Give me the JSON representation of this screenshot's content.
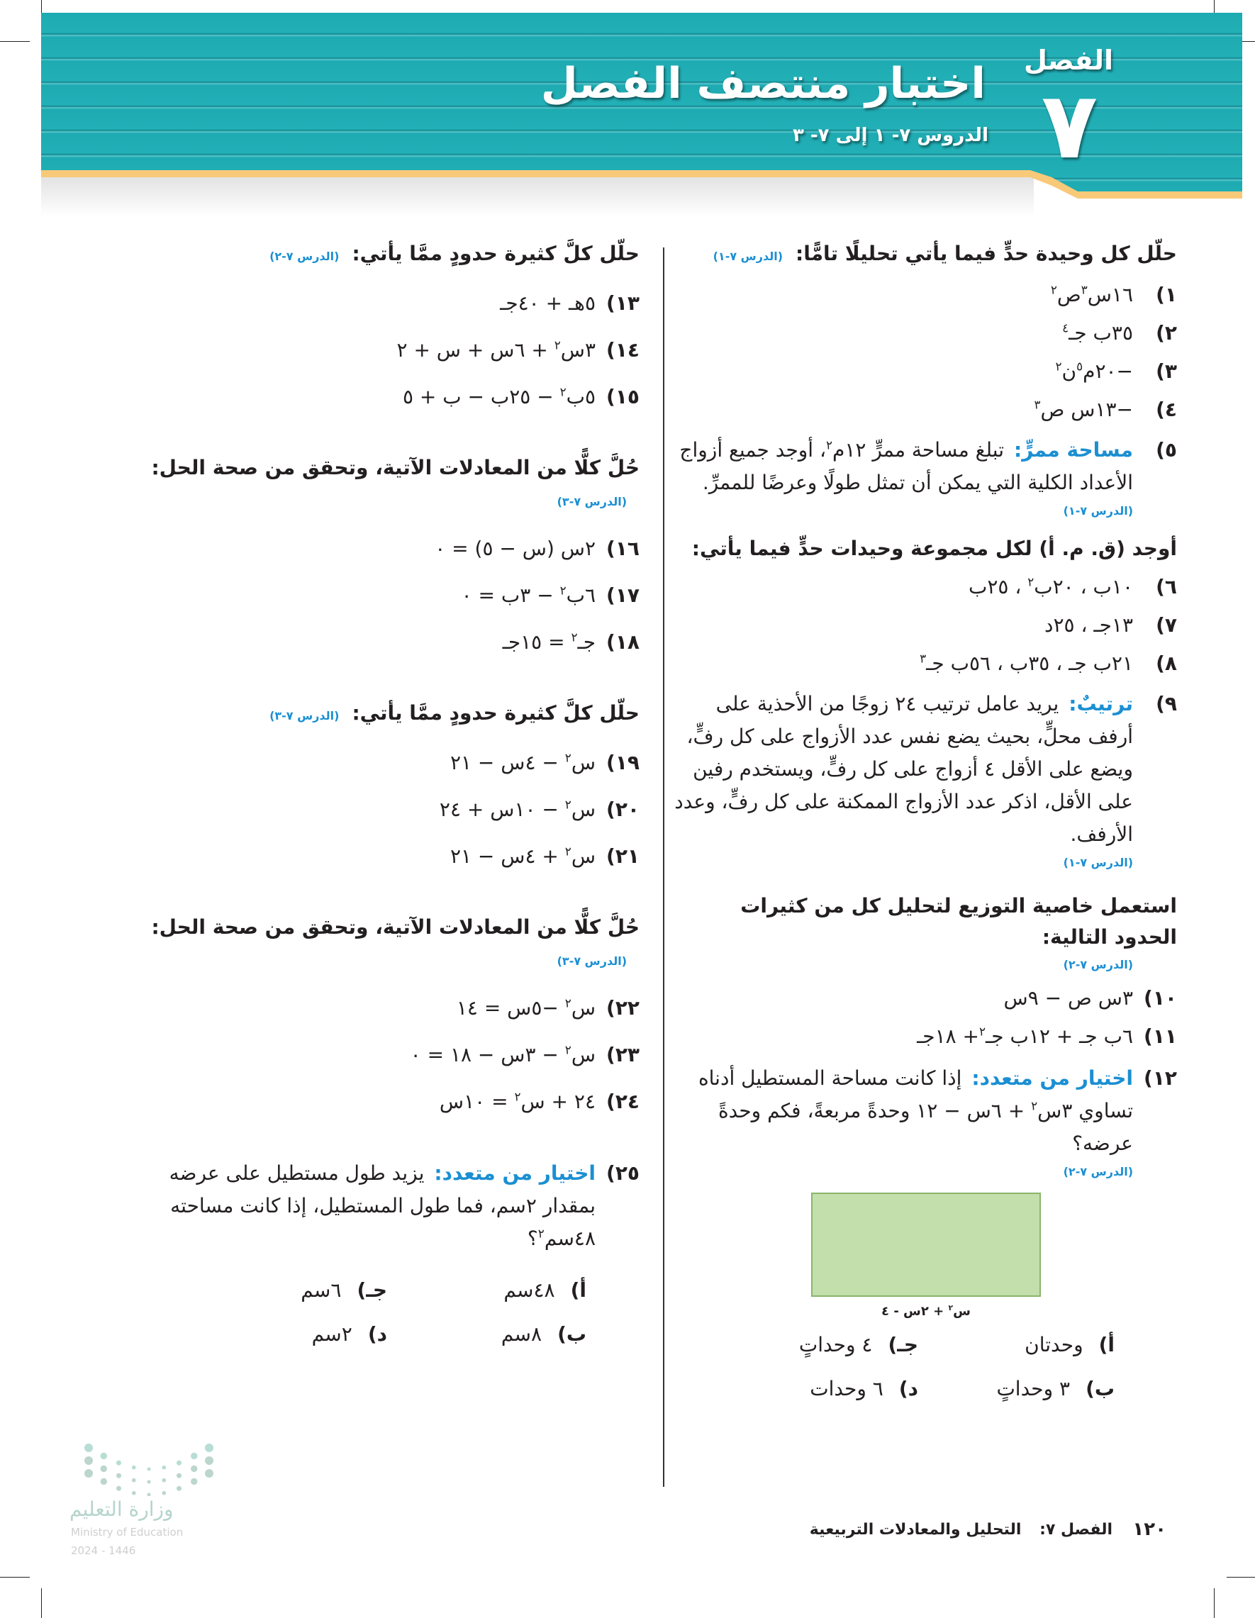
{
  "header": {
    "chapter_word": "الفصل",
    "chapter_number": "٧",
    "title": "اختبار منتصف الفصل",
    "subtitle": "الدروس ٧- ١ إلى ٧- ٣",
    "band_color": "#1eaab1",
    "accent_color": "#f8c979"
  },
  "lesson_ref_color": "#1b8fd2",
  "right": {
    "blocks": [
      {
        "type": "heading",
        "text": "حلّل كل وحيدة حدٍّ فيما يأتي تحليلًا تامًّا:",
        "ref": "(الدرس ٧-١)"
      },
      {
        "type": "item",
        "num": "١)",
        "expr": [
          "١٦س",
          {
            "sup": "٣"
          },
          "ص",
          {
            "sup": "٢"
          }
        ]
      },
      {
        "type": "item",
        "num": "٢)",
        "expr": [
          "٣٥ب جـ",
          {
            "sup": "٤"
          }
        ]
      },
      {
        "type": "item",
        "num": "٣)",
        "expr": [
          "−٢٠م",
          {
            "sup": "٥"
          },
          "ن",
          {
            "sup": "٢"
          }
        ]
      },
      {
        "type": "item",
        "num": "٤)",
        "expr": [
          "−١٣س ص",
          {
            "sup": "٣"
          }
        ]
      },
      {
        "type": "item",
        "num": "٥)",
        "label": "مساحة ممرٍّ:",
        "expr": [
          "تبلغ مساحة ممرٍّ ١٢م",
          {
            "sup": "٢"
          },
          "، أوجد جميع أزواج الأعداد الكلية التي يمكن أن تمثل طولًا وعرضًا للممرِّ."
        ]
      },
      {
        "type": "ref",
        "text": "(الدرس ٧-١)"
      },
      {
        "type": "heading",
        "text": "أوجد (ق. م. أ) لكل مجموعة وحيدات حدٍّ فيما يأتي:"
      },
      {
        "type": "item",
        "num": "٦)",
        "expr": [
          "١٠ب ، ٢٠ب",
          {
            "sup": "٢"
          },
          " ، ٢٥ب"
        ]
      },
      {
        "type": "item",
        "num": "٧)",
        "expr": [
          "١٣جـ ، ٢٥د"
        ]
      },
      {
        "type": "item",
        "num": "٨)",
        "expr": [
          "٢١ب جـ ، ٣٥ب ، ٥٦ب جـ",
          {
            "sup": "٣"
          }
        ]
      },
      {
        "type": "item",
        "num": "٩)",
        "label": "ترتيبٌ:",
        "expr": [
          "يريد عامل ترتيب ٢٤ زوجًا من الأحذية على أرفف محلٍّ، بحيث يضع نفس عدد الأزواج على كل رفٍّ، ويضع على الأقل ٤ أزواج على كل رفٍّ، ويستخدم رفين على الأقل، اذكر عدد الأزواج الممكنة على كل رفٍّ، وعدد الأرفف."
        ]
      },
      {
        "type": "ref",
        "text": "(الدرس ٧-١)"
      },
      {
        "type": "heading",
        "text": "استعمل خاصية التوزيع لتحليل كل من كثيرات الحدود التالية:"
      },
      {
        "type": "ref",
        "text": "(الدرس ٧-٢)"
      },
      {
        "type": "item",
        "num": "١٠)",
        "expr": [
          "٣س ص − ٩س"
        ]
      },
      {
        "type": "item",
        "num": "١١)",
        "expr": [
          "٦ب جـ + ١٢ب جـ",
          {
            "sup": "٢"
          },
          "+ ١٨جـ"
        ]
      },
      {
        "type": "item",
        "num": "١٢)",
        "label": "اختيار من متعدد:",
        "expr": [
          "إذا كانت مساحة المستطيل أدناه تساوي ٣س",
          {
            "sup": "٢"
          },
          " + ٦س − ١٢ وحدةً مربعةً، فكم وحدةً عرضه؟"
        ]
      },
      {
        "type": "ref",
        "text": "(الدرس ٧-٢)"
      }
    ],
    "figure": {
      "label": [
        "س",
        {
          "sup": "٢"
        },
        " + ٢س - ٤"
      ],
      "fill": "#c3dfac"
    },
    "options": [
      {
        "key": "أ)",
        "text": "وحدتان"
      },
      {
        "key": "ب)",
        "text": "٣ وحداتٍ"
      },
      {
        "key": "جـ)",
        "text": "٤ وحداتٍ"
      },
      {
        "key": "د)",
        "text": "٦ وحدات"
      }
    ]
  },
  "left": {
    "blocks": [
      {
        "type": "heading",
        "text": "حلّل كلَّ كثيرة حدودٍ ممَّا يأتي:",
        "ref": "(الدرس ٧-٢)"
      },
      {
        "type": "item",
        "num": "١٣)",
        "expr": [
          "٥هـ + ٤٠جـ"
        ]
      },
      {
        "type": "item",
        "num": "١٤)",
        "expr": [
          "٣س",
          {
            "sup": "٢"
          },
          " + ٦س + س + ٢"
        ]
      },
      {
        "type": "item",
        "num": "١٥)",
        "expr": [
          "٥ب",
          {
            "sup": "٢"
          },
          " − ٢٥ب − ب + ٥"
        ]
      },
      {
        "type": "heading",
        "text": "حُلَّ كلًّا من المعادلات الآتية، وتحقق من صحة الحل:",
        "ref": "(الدرس ٧-٣)"
      },
      {
        "type": "item",
        "num": "١٦)",
        "expr": [
          "٢س (س − ٥) = ٠"
        ]
      },
      {
        "type": "item",
        "num": "١٧)",
        "expr": [
          "٦ب",
          {
            "sup": "٢"
          },
          " − ٣ب = ٠"
        ]
      },
      {
        "type": "item",
        "num": "١٨)",
        "expr": [
          "جـ",
          {
            "sup": "٢"
          },
          " = ١٥جـ"
        ]
      },
      {
        "type": "heading",
        "text": "حلّل كلَّ كثيرة حدودٍ ممَّا يأتي:",
        "ref": "(الدرس ٧-٣)"
      },
      {
        "type": "item",
        "num": "١٩)",
        "expr": [
          "س",
          {
            "sup": "٢"
          },
          " − ٤س − ٢١"
        ]
      },
      {
        "type": "item",
        "num": "٢٠)",
        "expr": [
          "س",
          {
            "sup": "٢"
          },
          " − ١٠س + ٢٤"
        ]
      },
      {
        "type": "item",
        "num": "٢١)",
        "expr": [
          "س",
          {
            "sup": "٢"
          },
          " + ٤س − ٢١"
        ]
      },
      {
        "type": "heading",
        "text": "حُلَّ كلًّا من المعادلات الآتية، وتحقق من صحة الحل:",
        "ref": "(الدرس ٧-٣)"
      },
      {
        "type": "item",
        "num": "٢٢)",
        "expr": [
          "س",
          {
            "sup": "٢"
          },
          " −٥س = ١٤"
        ]
      },
      {
        "type": "item",
        "num": "٢٣)",
        "expr": [
          "س",
          {
            "sup": "٢"
          },
          " − ٣س − ١٨ = ٠"
        ]
      },
      {
        "type": "item",
        "num": "٢٤)",
        "expr": [
          "٢٤ + س",
          {
            "sup": "٢"
          },
          " = ١٠س"
        ]
      },
      {
        "type": "item",
        "num": "٢٥)",
        "label": "اختيار من متعدد:",
        "expr": [
          "يزيد طول مستطيل على عرضه بمقدار ٢سم، فما طول المستطيل، إذا كانت مساحته ٤٨سم",
          {
            "sup": "٢"
          },
          "؟"
        ]
      }
    ],
    "options": [
      {
        "key": "أ)",
        "text": "٤٨سم"
      },
      {
        "key": "ب)",
        "text": "٨سم"
      },
      {
        "key": "جـ)",
        "text": "٦سم"
      },
      {
        "key": "د)",
        "text": "٢سم"
      }
    ]
  },
  "footer": {
    "page_number": "١٢٠",
    "chapter": "الفصل ٧:",
    "chapter_title": "التحليل والمعادلات التربيعية"
  },
  "logo": {
    "name_ar": "وزارة التعليم",
    "name_en": "Ministry of Education",
    "year": "2024 - 1446"
  }
}
